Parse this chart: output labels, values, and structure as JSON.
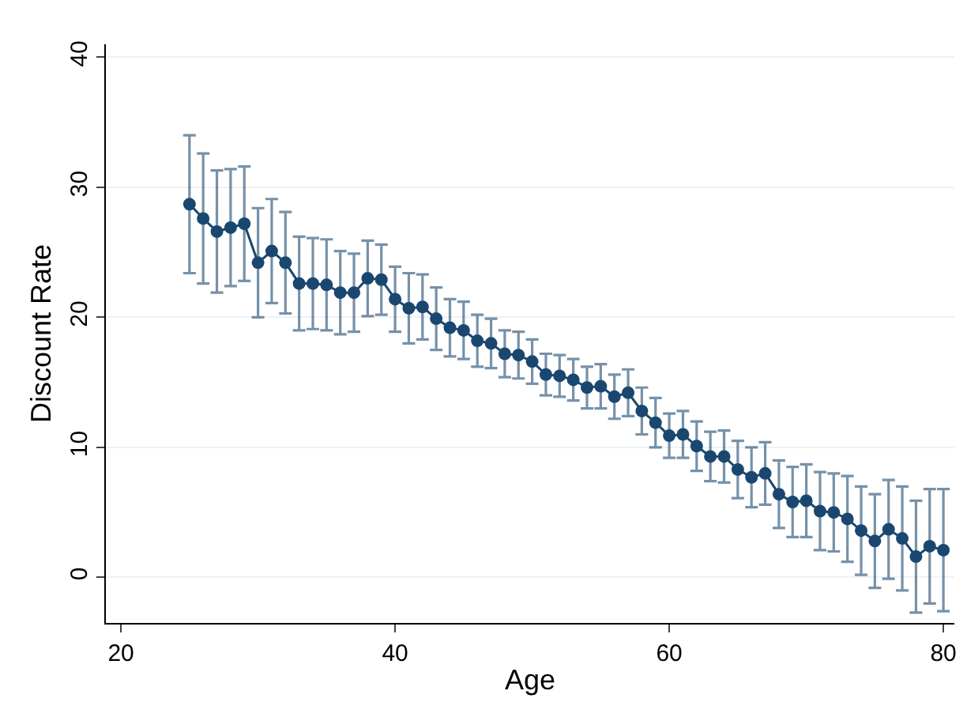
{
  "chart_data": {
    "type": "line",
    "marker": "circle",
    "xlabel": "Age",
    "ylabel": "Discount Rate",
    "x": [
      25,
      26,
      27,
      28,
      29,
      30,
      31,
      32,
      33,
      34,
      35,
      36,
      37,
      38,
      39,
      40,
      41,
      42,
      43,
      44,
      45,
      46,
      47,
      48,
      49,
      50,
      51,
      52,
      53,
      54,
      55,
      56,
      57,
      58,
      59,
      60,
      61,
      62,
      63,
      64,
      65,
      66,
      67,
      68,
      69,
      70,
      71,
      72,
      73,
      74,
      75,
      76,
      77,
      78,
      79,
      80
    ],
    "series": [
      {
        "color": "#1a476f",
        "values": [
          28.7,
          27.6,
          26.6,
          26.9,
          27.2,
          24.2,
          25.1,
          24.2,
          22.6,
          22.6,
          22.5,
          21.9,
          21.9,
          23.0,
          22.9,
          21.4,
          20.7,
          20.8,
          19.9,
          19.2,
          19.0,
          18.2,
          18.0,
          17.2,
          17.1,
          16.6,
          15.6,
          15.5,
          15.2,
          14.6,
          14.7,
          13.9,
          14.2,
          12.8,
          11.9,
          10.9,
          11.0,
          10.1,
          9.3,
          9.3,
          8.3,
          7.7,
          8.0,
          6.4,
          5.8,
          5.9,
          5.1,
          5.0,
          4.5,
          3.6,
          2.8,
          3.7,
          3.0,
          1.6,
          2.4,
          2.1
        ],
        "errors": [
          5.3,
          5.0,
          4.7,
          4.5,
          4.4,
          4.2,
          4.0,
          3.9,
          3.6,
          3.5,
          3.5,
          3.2,
          3.0,
          2.9,
          2.7,
          2.5,
          2.7,
          2.5,
          2.4,
          2.2,
          2.2,
          2.0,
          1.9,
          1.8,
          1.8,
          1.7,
          1.6,
          1.6,
          1.6,
          1.6,
          1.7,
          1.7,
          1.8,
          1.8,
          1.9,
          1.7,
          1.8,
          1.9,
          1.9,
          2.0,
          2.2,
          2.3,
          2.4,
          2.6,
          2.7,
          2.8,
          3.0,
          3.0,
          3.3,
          3.4,
          3.6,
          3.8,
          4.0,
          4.3,
          4.4,
          4.7
        ]
      }
    ],
    "xlim": [
      18.9,
      80.8
    ],
    "xticks": [
      20,
      40,
      60,
      80
    ],
    "ylim": [
      -3.5,
      41
    ],
    "yticks": [
      0,
      10,
      20,
      30,
      40
    ],
    "grid": "y"
  }
}
